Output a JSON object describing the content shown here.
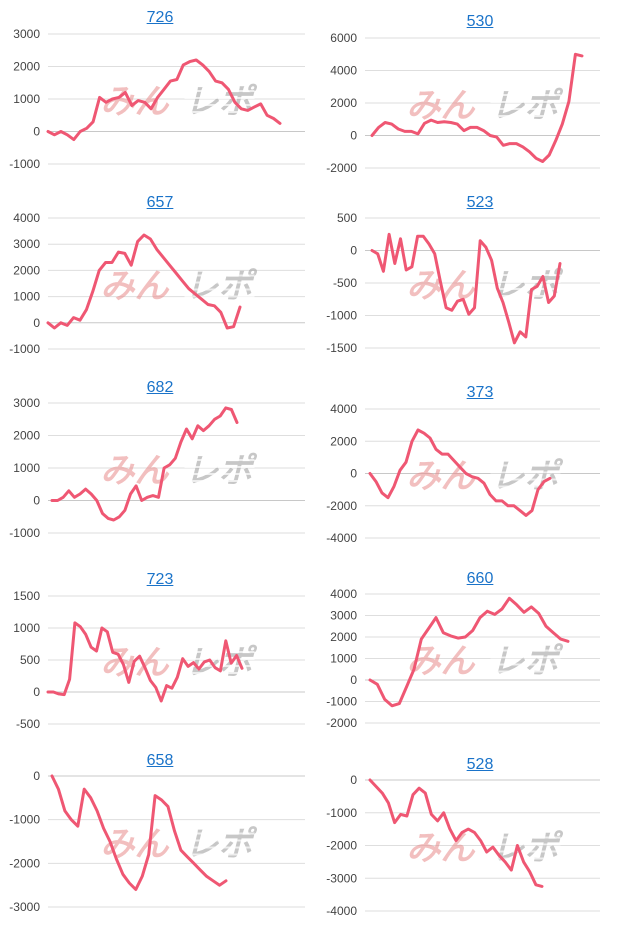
{
  "colors": {
    "line": "#ef5773",
    "title_link": "#1a73c9",
    "watermark_left": "#e98b8b",
    "watermark_right": "#9a9a9a"
  },
  "watermark": {
    "text_left": "みん",
    "text_right": "レポ"
  },
  "chart_data": [
    {
      "type": "line",
      "title": "726",
      "yticks": [
        3000,
        2000,
        1000,
        0,
        -1000
      ],
      "ylim": [
        -1000,
        3000
      ],
      "values": [
        0,
        -100,
        0,
        -100,
        -250,
        0,
        100,
        300,
        1050,
        900,
        1000,
        1050,
        1200,
        800,
        950,
        900,
        700,
        1050,
        1300,
        1550,
        1600,
        2050,
        2150,
        2200,
        2050,
        1850,
        1550,
        1500,
        1300,
        900,
        700,
        650,
        750,
        850,
        500,
        400,
        250
      ]
    },
    {
      "type": "line",
      "title": "530",
      "yticks": [
        6000,
        4000,
        2000,
        0,
        -2000
      ],
      "ylim": [
        -2000,
        6000
      ],
      "values": [
        0,
        500,
        800,
        700,
        400,
        250,
        250,
        100,
        750,
        950,
        800,
        850,
        800,
        700,
        300,
        500,
        500,
        300,
        0,
        -100,
        -600,
        -500,
        -500,
        -700,
        -1000,
        -1400,
        -1600,
        -1200,
        -300,
        700,
        2100,
        5000,
        4900
      ]
    },
    {
      "type": "line",
      "title": "657",
      "yticks": [
        4000,
        3000,
        2000,
        1000,
        0,
        -1000
      ],
      "ylim": [
        -1000,
        4000
      ],
      "values": [
        0,
        -200,
        0,
        -100,
        200,
        100,
        500,
        1200,
        2000,
        2300,
        2300,
        2700,
        2650,
        2200,
        3100,
        3350,
        3200,
        2800,
        2500,
        2200,
        1900,
        1600,
        1300,
        1100,
        900,
        700,
        650,
        400,
        -200,
        -150,
        600
      ]
    },
    {
      "type": "line",
      "title": "523",
      "yticks": [
        500,
        0,
        -500,
        -1000,
        -1500
      ],
      "ylim": [
        -1500,
        500
      ],
      "values": [
        0,
        -50,
        -320,
        250,
        -200,
        180,
        -300,
        -250,
        220,
        220,
        100,
        -50,
        -480,
        -880,
        -920,
        -780,
        -750,
        -980,
        -880,
        150,
        50,
        -150,
        -580,
        -800,
        -1100,
        -1420,
        -1250,
        -1330,
        -600,
        -550,
        -400,
        -800,
        -700,
        -200
      ]
    },
    {
      "type": "line",
      "title": "682",
      "yticks": [
        3000,
        2000,
        1000,
        0,
        -1000
      ],
      "ylim": [
        -1000,
        3000
      ],
      "values": [
        0,
        0,
        100,
        300,
        100,
        200,
        350,
        200,
        0,
        -400,
        -550,
        -600,
        -500,
        -300,
        200,
        450,
        0,
        100,
        150,
        100,
        1000,
        1100,
        1300,
        1800,
        2200,
        1900,
        2300,
        2150,
        2300,
        2500,
        2600,
        2850,
        2800,
        2400
      ]
    },
    {
      "type": "line",
      "title": "373",
      "yticks": [
        4000,
        2000,
        0,
        -2000,
        -4000
      ],
      "ylim": [
        -4000,
        4000
      ],
      "values": [
        0,
        -500,
        -1200,
        -1500,
        -800,
        200,
        700,
        2000,
        2700,
        2500,
        2200,
        1500,
        1200,
        1200,
        800,
        400,
        0,
        -200,
        -300,
        -600,
        -1300,
        -1700,
        -1700,
        -2000,
        -2000,
        -2300,
        -2600,
        -2300,
        -1000,
        -500,
        -300
      ]
    },
    {
      "type": "line",
      "title": "723",
      "yticks": [
        1500,
        1000,
        500,
        0,
        -500
      ],
      "ylim": [
        -500,
        1500
      ],
      "values": [
        0,
        0,
        -30,
        -40,
        200,
        1080,
        1020,
        900,
        700,
        640,
        1000,
        940,
        620,
        590,
        430,
        150,
        480,
        560,
        380,
        180,
        70,
        -140,
        100,
        60,
        230,
        520,
        400,
        460,
        360,
        470,
        500,
        380,
        330,
        800,
        450,
        570,
        370
      ]
    },
    {
      "type": "line",
      "title": "660",
      "yticks": [
        4000,
        3000,
        2000,
        1000,
        0,
        -1000,
        -2000
      ],
      "ylim": [
        -2000,
        4000
      ],
      "values": [
        0,
        -200,
        -900,
        -1200,
        -1100,
        -300,
        500,
        1900,
        2400,
        2900,
        2200,
        2050,
        1950,
        2000,
        2300,
        2900,
        3200,
        3050,
        3300,
        3800,
        3500,
        3150,
        3400,
        3100,
        2500,
        2200,
        1900,
        1800
      ]
    },
    {
      "type": "line",
      "title": "658",
      "yticks": [
        0,
        -1000,
        -2000,
        -3000
      ],
      "ylim": [
        -3000,
        0
      ],
      "values": [
        0,
        -300,
        -800,
        -1000,
        -1150,
        -300,
        -500,
        -800,
        -1200,
        -1500,
        -1900,
        -2250,
        -2450,
        -2600,
        -2300,
        -1800,
        -450,
        -550,
        -700,
        -1250,
        -1700,
        -1850,
        -2000,
        -2150,
        -2300,
        -2400,
        -2500,
        -2400
      ]
    },
    {
      "type": "line",
      "title": "528",
      "yticks": [
        0,
        -1000,
        -2000,
        -3000,
        -4000
      ],
      "ylim": [
        -4000,
        0
      ],
      "values": [
        0,
        -200,
        -400,
        -700,
        -1300,
        -1050,
        -1100,
        -450,
        -250,
        -400,
        -1050,
        -1250,
        -1000,
        -1500,
        -1850,
        -1600,
        -1500,
        -1600,
        -1850,
        -2200,
        -2050,
        -2300,
        -2500,
        -2750,
        -2000,
        -2500,
        -2800,
        -3200,
        -3250
      ]
    }
  ]
}
